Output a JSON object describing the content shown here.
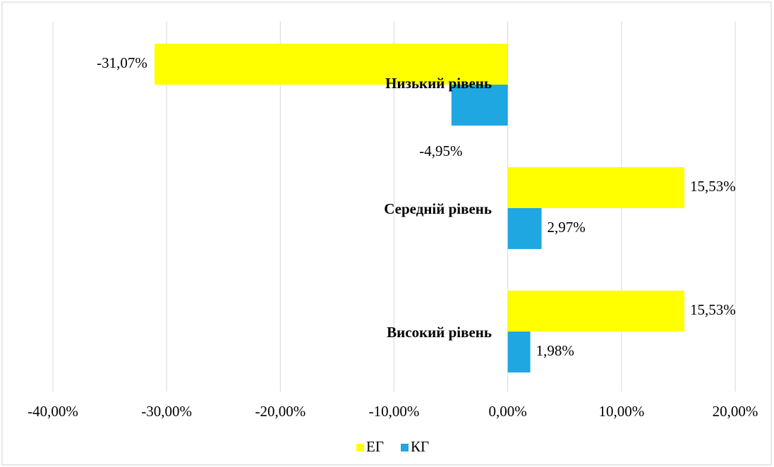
{
  "chart_data": {
    "type": "hbar",
    "categories": [
      "Низький рівень",
      "Середній рівень",
      "Високий рівень"
    ],
    "series": [
      {
        "name": "ЕГ",
        "color": "#ffff00",
        "values": [
          -31.07,
          15.53,
          15.53
        ],
        "value_labels": [
          "-31,07%",
          "15,53%",
          "15,53%"
        ]
      },
      {
        "name": "КГ",
        "color": "#1ea7e1",
        "values": [
          -4.95,
          2.97,
          1.98
        ],
        "value_labels": [
          "-4,95%",
          "2,97%",
          "1,98%"
        ]
      }
    ],
    "xlim": [
      -40,
      20
    ],
    "xticks": [
      {
        "value": -40,
        "label": "-40,00%"
      },
      {
        "value": -30,
        "label": "-30,00%"
      },
      {
        "value": -20,
        "label": "-20,00%"
      },
      {
        "value": -10,
        "label": "-10,00%"
      },
      {
        "value": 0,
        "label": "0,00%"
      },
      {
        "value": 10,
        "label": "10,00%"
      },
      {
        "value": 20,
        "label": "20,00%"
      }
    ],
    "grid": true,
    "legend": "bottom"
  }
}
